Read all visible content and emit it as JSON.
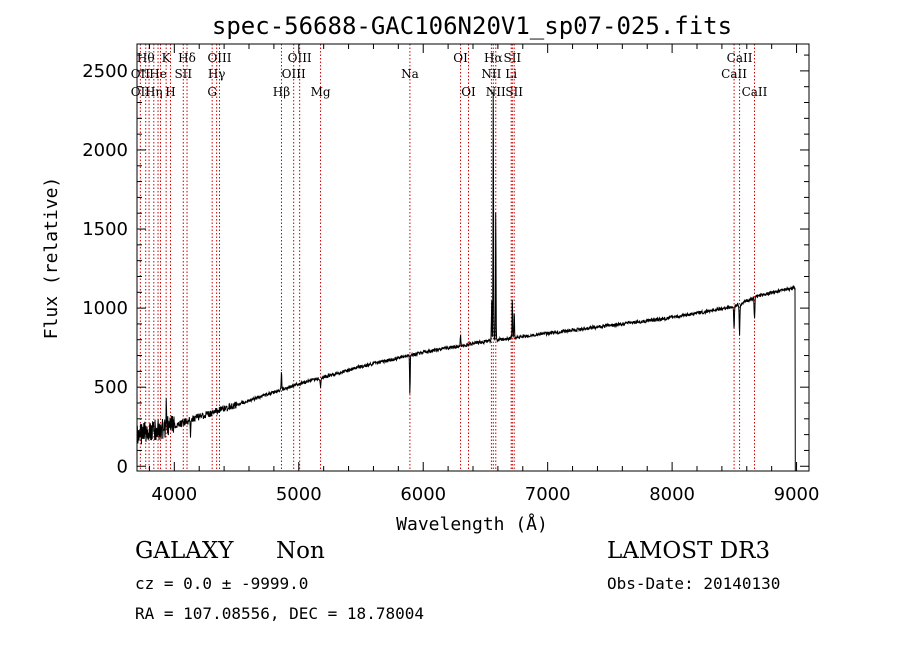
{
  "chart_data": {
    "type": "line",
    "title": "spec-56688-GAC106N20V1_sp07-025.fits",
    "xlabel": "Wavelength (Å)",
    "ylabel": "Flux (relative)",
    "xlim": [
      3700,
      9100
    ],
    "ylim": [
      -30,
      2670
    ],
    "x_ticks": [
      4000,
      5000,
      6000,
      7000,
      8000,
      9000
    ],
    "x_tick_labels": [
      "4000",
      "5000",
      "6000",
      "7000",
      "8000",
      "9000"
    ],
    "y_ticks": [
      0,
      500,
      1000,
      1500,
      2000,
      2500
    ],
    "y_tick_labels": [
      "0",
      "500",
      "1000",
      "1500",
      "2000",
      "2500"
    ],
    "continuum": [
      [
        3700,
        200
      ],
      [
        4000,
        260
      ],
      [
        4500,
        390
      ],
      [
        5000,
        520
      ],
      [
        5500,
        630
      ],
      [
        6000,
        720
      ],
      [
        6500,
        790
      ],
      [
        7000,
        840
      ],
      [
        7500,
        890
      ],
      [
        8000,
        940
      ],
      [
        8500,
        1010
      ],
      [
        8700,
        1080
      ],
      [
        9000,
        1130
      ]
    ],
    "features": [
      {
        "wavelength": 3935,
        "delta": 150,
        "width": 3
      },
      {
        "wavelength": 4130,
        "delta": -120,
        "width": 3
      },
      {
        "wavelength": 4861,
        "delta": 120,
        "width": 3
      },
      {
        "wavelength": 5175,
        "delta": -60,
        "width": 4
      },
      {
        "wavelength": 5893,
        "delta": -250,
        "width": 3
      },
      {
        "wavelength": 6300,
        "delta": 70,
        "width": 3
      },
      {
        "wavelength": 6563,
        "delta": 1620,
        "width": 3
      },
      {
        "wavelength": 6583,
        "delta": 830,
        "width": 3
      },
      {
        "wavelength": 6550,
        "delta": 250,
        "width": 3
      },
      {
        "wavelength": 6716,
        "delta": 270,
        "width": 3
      },
      {
        "wavelength": 6731,
        "delta": 180,
        "width": 3
      },
      {
        "wavelength": 8498,
        "delta": -140,
        "width": 4
      },
      {
        "wavelength": 8542,
        "delta": -200,
        "width": 4
      },
      {
        "wavelength": 8662,
        "delta": -140,
        "width": 4
      }
    ],
    "line_markers": [
      {
        "wavelength": 3727,
        "labels": [
          {
            "text": "OII",
            "row": 2
          },
          {
            "text": "OII",
            "row": 3
          }
        ]
      },
      {
        "wavelength": 3770,
        "labels": [
          {
            "text": "Hθ",
            "row": 1
          }
        ]
      },
      {
        "wavelength": 3797,
        "labels": []
      },
      {
        "wavelength": 3835,
        "labels": [
          {
            "text": "Hη",
            "row": 3
          }
        ]
      },
      {
        "wavelength": 3869,
        "labels": [
          {
            "text": "He",
            "row": 2
          }
        ]
      },
      {
        "wavelength": 3889,
        "labels": []
      },
      {
        "wavelength": 3934,
        "labels": [
          {
            "text": "K",
            "row": 1
          }
        ]
      },
      {
        "wavelength": 3969,
        "labels": [
          {
            "text": "H",
            "row": 3
          }
        ]
      },
      {
        "wavelength": 4072,
        "labels": [
          {
            "text": "SII",
            "row": 2
          }
        ]
      },
      {
        "wavelength": 4102,
        "labels": [
          {
            "text": "Hδ",
            "row": 1
          }
        ]
      },
      {
        "wavelength": 4304,
        "labels": [
          {
            "text": "G",
            "row": 3
          }
        ]
      },
      {
        "wavelength": 4340,
        "labels": [
          {
            "text": "Hγ",
            "row": 2
          }
        ]
      },
      {
        "wavelength": 4363,
        "labels": [
          {
            "text": "OIII",
            "row": 1
          }
        ]
      },
      {
        "wavelength": 4861,
        "labels": [
          {
            "text": "Hβ",
            "row": 3
          }
        ]
      },
      {
        "wavelength": 4959,
        "labels": [
          {
            "text": "OIII",
            "row": 2
          }
        ]
      },
      {
        "wavelength": 5007,
        "labels": [
          {
            "text": "OIII",
            "row": 1
          }
        ]
      },
      {
        "wavelength": 5175,
        "labels": [
          {
            "text": "Mg",
            "row": 3
          }
        ]
      },
      {
        "wavelength": 5893,
        "labels": [
          {
            "text": "Na",
            "row": 2
          }
        ]
      },
      {
        "wavelength": 6300,
        "labels": [
          {
            "text": "OI",
            "row": 1
          }
        ]
      },
      {
        "wavelength": 6364,
        "labels": [
          {
            "text": "OI",
            "row": 3
          }
        ]
      },
      {
        "wavelength": 6548,
        "labels": [
          {
            "text": "NII",
            "row": 2
          }
        ]
      },
      {
        "wavelength": 6563,
        "labels": [
          {
            "text": "Hα",
            "row": 1
          }
        ]
      },
      {
        "wavelength": 6583,
        "labels": [
          {
            "text": "NII",
            "row": 3
          }
        ]
      },
      {
        "wavelength": 6707,
        "labels": [
          {
            "text": "Li",
            "row": 2
          }
        ]
      },
      {
        "wavelength": 6716,
        "labels": [
          {
            "text": "SII",
            "row": 1
          }
        ]
      },
      {
        "wavelength": 6731,
        "labels": [
          {
            "text": "SII",
            "row": 3
          }
        ]
      },
      {
        "wavelength": 8498,
        "labels": [
          {
            "text": "CaII",
            "row": 2
          }
        ]
      },
      {
        "wavelength": 8542,
        "labels": [
          {
            "text": "CaII",
            "row": 1
          }
        ]
      },
      {
        "wavelength": 8662,
        "labels": [
          {
            "text": "CaII",
            "row": 3
          }
        ]
      }
    ],
    "colors": {
      "spectrum": "#000000",
      "markers": "#cc0000",
      "axes": "#000000"
    }
  },
  "info": {
    "object_class": "GALAXY",
    "subclass": "Non",
    "survey": "LAMOST DR3",
    "cz": "cz = 0.0 ± -9999.0",
    "obs_date": "Obs-Date: 20140130",
    "coords": "RA = 107.08556, DEC =  18.78004"
  }
}
